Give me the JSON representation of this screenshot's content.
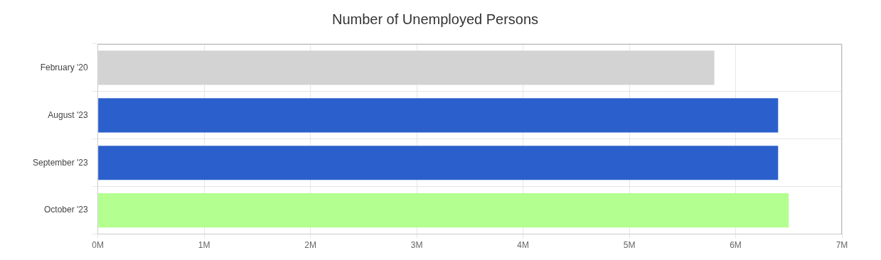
{
  "chart_data": {
    "type": "bar",
    "orientation": "horizontal",
    "title": "Number of Unemployed Persons",
    "categories": [
      "February '20",
      "August '23",
      "September '23",
      "October '23"
    ],
    "values": [
      5800000,
      6400000,
      6400000,
      6500000
    ],
    "colors": [
      "#d3d3d3",
      "#2b60cc",
      "#2b60cc",
      "#b3ff8f"
    ],
    "xlim": [
      0,
      7000000
    ],
    "xticks": [
      {
        "value": 0,
        "label": "0M"
      },
      {
        "value": 1000000,
        "label": "1M"
      },
      {
        "value": 2000000,
        "label": "2M"
      },
      {
        "value": 3000000,
        "label": "3M"
      },
      {
        "value": 4000000,
        "label": "4M"
      },
      {
        "value": 5000000,
        "label": "5M"
      },
      {
        "value": 6000000,
        "label": "6M"
      },
      {
        "value": 7000000,
        "label": "7M"
      }
    ],
    "grid": true
  }
}
